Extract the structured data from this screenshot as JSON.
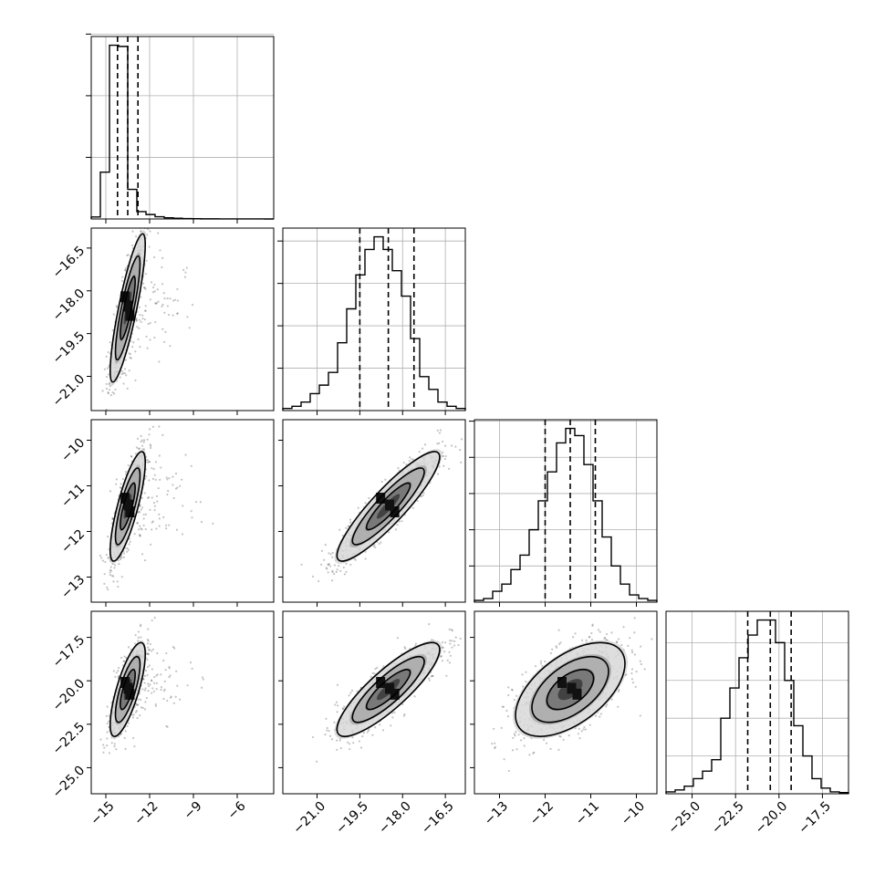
{
  "chart_data": {
    "type": "corner",
    "parameters": [
      "",
      "",
      "",
      ""
    ],
    "histograms": [
      {
        "range": [
          -16,
          -3.5
        ],
        "counts": [
          0.8,
          19,
          70.5,
          70,
          12,
          3,
          1.8,
          0.9,
          0.5,
          0.3,
          0.15,
          0.1,
          0.05,
          0.05,
          0.02,
          0.02,
          0.01,
          0.01,
          0.005,
          0
        ],
        "quantiles": [
          -14.2,
          -13.5,
          -12.8
        ],
        "grid_levels": [
          25,
          50,
          75
        ]
      },
      {
        "range": [
          -22.2,
          -15.8
        ],
        "counts": [
          0.5,
          1,
          2,
          4,
          6,
          9,
          16,
          24,
          32,
          38,
          41,
          38,
          33,
          27,
          17,
          8,
          5,
          2,
          1,
          0.5
        ],
        "quantiles": [
          -19.5,
          -18.5,
          -17.6
        ],
        "grid_levels": [
          10,
          20,
          30,
          40
        ]
      },
      {
        "range": [
          -13.55,
          -9.55
        ],
        "counts": [
          0.5,
          1,
          3,
          5,
          9,
          13,
          20,
          28,
          36,
          44,
          48,
          46,
          38,
          28,
          18,
          10,
          5,
          2,
          1,
          0.5
        ],
        "quantiles": [
          -12.0,
          -11.45,
          -10.9
        ],
        "grid_levels": [
          10,
          20,
          30,
          40,
          50
        ]
      },
      {
        "range": [
          -26.5,
          -16.0
        ],
        "counts": [
          0.5,
          1,
          2,
          4,
          6,
          9,
          20,
          28,
          36,
          42,
          46,
          46,
          40,
          30,
          18,
          10,
          4,
          1.5,
          0.5,
          0.3
        ],
        "quantiles": [
          -21.8,
          -20.5,
          -19.3
        ],
        "grid_levels": [
          10,
          20,
          30,
          40
        ]
      }
    ],
    "axis_ticks": [
      [
        -15,
        -12,
        -9,
        -6
      ],
      [
        -21.0,
        -19.5,
        -18.0,
        -16.5
      ],
      [
        -13,
        -12,
        -11,
        -10
      ],
      [
        -25.0,
        -22.5,
        -20.0,
        -17.5
      ]
    ],
    "tick_labels": [
      [
        "−15",
        "−12",
        "−9",
        "−6"
      ],
      [
        "−21.0",
        "−19.5",
        "−18.0",
        "−16.5"
      ],
      [
        "−13",
        "−12",
        "−11",
        "−10"
      ],
      [
        "−25.0",
        "−22.5",
        "−20.0",
        "−17.5"
      ]
    ],
    "pairs": [
      {
        "x": 0,
        "y": 1,
        "mean": [
          -13.5,
          -18.6
        ],
        "sd": [
          0.6,
          1.3
        ],
        "rho": 0.85
      },
      {
        "x": 0,
        "y": 2,
        "mean": [
          -13.5,
          -11.45
        ],
        "sd": [
          0.6,
          0.6
        ],
        "rho": 0.8
      },
      {
        "x": 0,
        "y": 3,
        "mean": [
          -13.5,
          -20.5
        ],
        "sd": [
          0.6,
          1.35
        ],
        "rho": 0.75
      },
      {
        "x": 1,
        "y": 2,
        "mean": [
          -18.5,
          -11.45
        ],
        "sd": [
          0.9,
          0.6
        ],
        "rho": 0.9
      },
      {
        "x": 1,
        "y": 3,
        "mean": [
          -18.5,
          -20.5
        ],
        "sd": [
          0.9,
          1.35
        ],
        "rho": 0.85
      },
      {
        "x": 2,
        "y": 3,
        "mean": [
          -11.45,
          -20.5
        ],
        "sd": [
          0.6,
          1.35
        ],
        "rho": 0.55
      }
    ],
    "grid": true,
    "colors": {
      "line": "#000000",
      "grid": "#b0b0b0",
      "points": "#555555"
    }
  }
}
